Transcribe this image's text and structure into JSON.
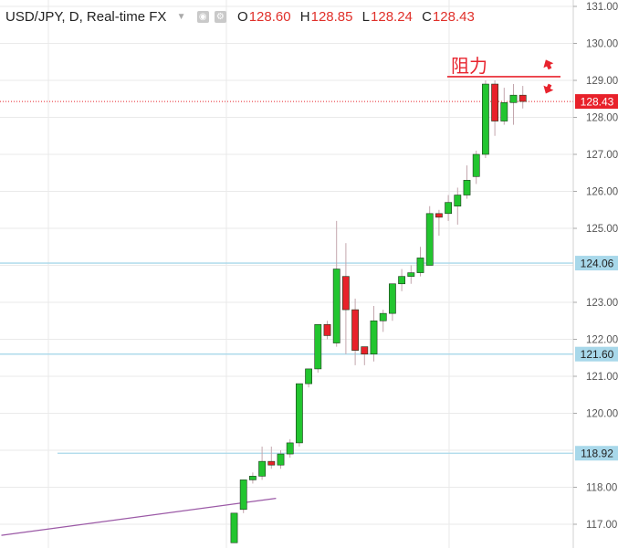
{
  "header": {
    "symbol": "USD/JPY, D, Real-time FX",
    "open_label": "O",
    "open": "128.60",
    "high_label": "H",
    "high": "128.85",
    "low_label": "L",
    "low": "128.24",
    "close_label": "C",
    "close": "128.43"
  },
  "annotation": "阻力",
  "chart_data": {
    "type": "candlestick",
    "y_range": [
      116.6,
      131.2
    ],
    "y_ticks": [
      "131.00",
      "130.00",
      "129.00",
      "128.00",
      "127.00",
      "126.00",
      "125.00",
      "123.00",
      "122.00",
      "121.00",
      "120.00",
      "118.00",
      "117.00"
    ],
    "price_tags": [
      {
        "label": "128.43",
        "value": 128.43,
        "color": "#e8212a",
        "line": "dotted"
      },
      {
        "label": "124.06",
        "value": 124.06,
        "color": "#a8d8ea",
        "line": "solid"
      },
      {
        "label": "121.60",
        "value": 121.6,
        "color": "#a8d8ea",
        "line": "solid"
      },
      {
        "label": "118.92",
        "value": 118.92,
        "color": "#a8d8ea",
        "line": "solid"
      }
    ],
    "resistance": 129.1,
    "colors": {
      "up": "#22c52f",
      "down": "#e8212a",
      "grid": "#eaeaea"
    },
    "candles": [
      {
        "o": 116.5,
        "h": 117.3,
        "l": 116.5,
        "c": 117.3
      },
      {
        "o": 117.4,
        "h": 118.2,
        "l": 117.3,
        "c": 118.2
      },
      {
        "o": 118.2,
        "h": 118.4,
        "l": 118.1,
        "c": 118.3
      },
      {
        "o": 118.3,
        "h": 119.1,
        "l": 118.2,
        "c": 118.7
      },
      {
        "o": 118.7,
        "h": 119.1,
        "l": 118.5,
        "c": 118.6
      },
      {
        "o": 118.6,
        "h": 119.0,
        "l": 118.5,
        "c": 118.9
      },
      {
        "o": 118.9,
        "h": 119.3,
        "l": 118.8,
        "c": 119.2
      },
      {
        "o": 119.2,
        "h": 120.8,
        "l": 119.1,
        "c": 120.8
      },
      {
        "o": 120.8,
        "h": 121.2,
        "l": 120.7,
        "c": 121.2
      },
      {
        "o": 121.2,
        "h": 122.4,
        "l": 121.1,
        "c": 122.4
      },
      {
        "o": 122.4,
        "h": 122.5,
        "l": 122.0,
        "c": 122.1
      },
      {
        "o": 121.9,
        "h": 125.2,
        "l": 121.8,
        "c": 123.9
      },
      {
        "o": 123.7,
        "h": 124.6,
        "l": 121.6,
        "c": 122.8
      },
      {
        "o": 122.8,
        "h": 123.1,
        "l": 121.3,
        "c": 121.7
      },
      {
        "o": 121.8,
        "h": 121.8,
        "l": 121.3,
        "c": 121.6
      },
      {
        "o": 121.6,
        "h": 122.9,
        "l": 121.4,
        "c": 122.5
      },
      {
        "o": 122.5,
        "h": 122.8,
        "l": 122.2,
        "c": 122.7
      },
      {
        "o": 122.7,
        "h": 123.5,
        "l": 122.5,
        "c": 123.5
      },
      {
        "o": 123.5,
        "h": 123.9,
        "l": 123.3,
        "c": 123.7
      },
      {
        "o": 123.7,
        "h": 124.0,
        "l": 123.5,
        "c": 123.8
      },
      {
        "o": 123.8,
        "h": 124.5,
        "l": 123.7,
        "c": 124.2
      },
      {
        "o": 124.0,
        "h": 125.6,
        "l": 124.0,
        "c": 125.4
      },
      {
        "o": 125.4,
        "h": 125.5,
        "l": 124.8,
        "c": 125.3
      },
      {
        "o": 125.4,
        "h": 125.9,
        "l": 125.2,
        "c": 125.7
      },
      {
        "o": 125.6,
        "h": 126.1,
        "l": 125.1,
        "c": 125.9
      },
      {
        "o": 125.9,
        "h": 126.7,
        "l": 125.8,
        "c": 126.3
      },
      {
        "o": 126.4,
        "h": 127.1,
        "l": 126.2,
        "c": 127.0
      },
      {
        "o": 127.0,
        "h": 129.0,
        "l": 126.9,
        "c": 128.9
      },
      {
        "o": 128.9,
        "h": 129.0,
        "l": 127.5,
        "c": 127.9
      },
      {
        "o": 127.9,
        "h": 128.8,
        "l": 127.8,
        "c": 128.4
      },
      {
        "o": 128.4,
        "h": 128.9,
        "l": 127.8,
        "c": 128.6
      },
      {
        "o": 128.6,
        "h": 128.85,
        "l": 128.24,
        "c": 128.43
      }
    ],
    "trend_line": {
      "from": [
        -25,
        116.7
      ],
      "to": [
        4.5,
        117.7
      ]
    }
  }
}
